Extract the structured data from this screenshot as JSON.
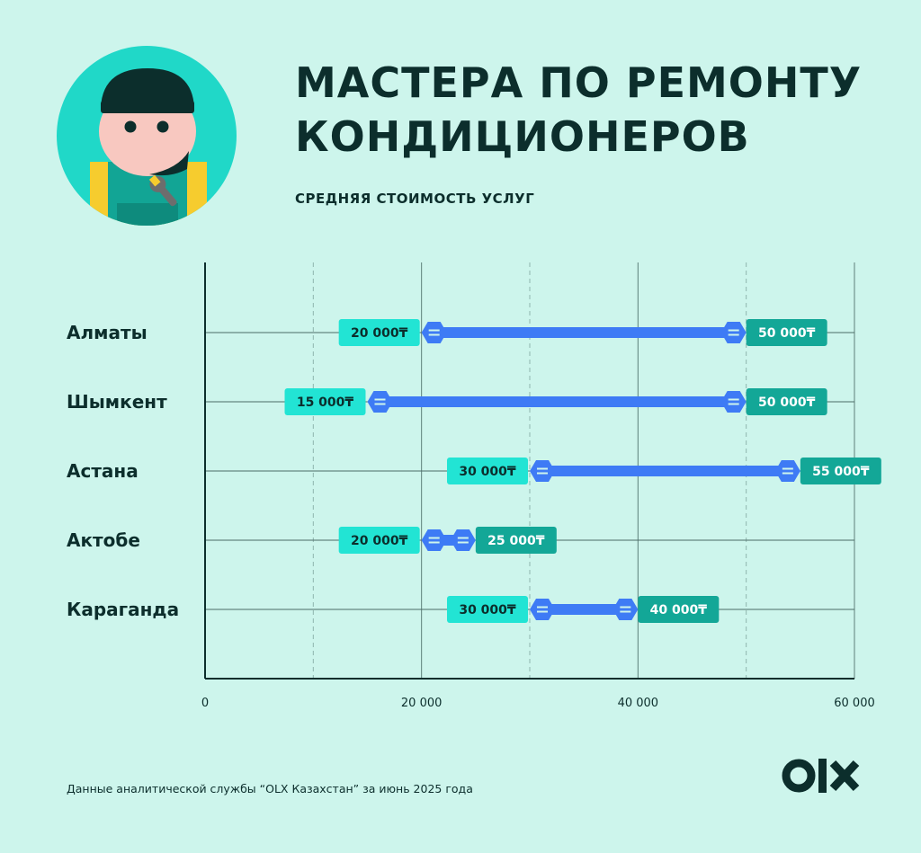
{
  "header": {
    "title": "МАСТЕРА ПО РЕМОНТУ КОНДИЦИОНЕРОВ",
    "subtitle": "СРЕДНЯЯ СТОИМОСТЬ УСЛУГ"
  },
  "footer": {
    "source": "Данные аналитической службы “OLX Казахстан” за июнь 2025 года",
    "logo_text": "OLX"
  },
  "colors": {
    "background": "#CDF5EC",
    "text": "#0C2E2C",
    "range_bar": "#3E7BF5",
    "min_label": "#22E4D4",
    "max_label": "#13A797",
    "avatar_circle": "#20D8C8"
  },
  "chart_data": {
    "type": "range-bar",
    "title": "МАСТЕРА ПО РЕМОНТУ КОНДИЦИОНЕРОВ",
    "subtitle": "СРЕДНЯЯ СТОИМОСТЬ УСЛУГ",
    "xlim": [
      0,
      60000
    ],
    "x_ticks": [
      0,
      20000,
      40000,
      60000
    ],
    "x_tick_labels": [
      "0",
      "20 000",
      "40 000",
      "60 000"
    ],
    "minor_gridlines": [
      10000,
      30000,
      50000
    ],
    "currency": "₸",
    "categories": [
      "Алматы",
      "Шымкент",
      "Астана",
      "Актобе",
      "Караганда"
    ],
    "series": [
      {
        "values": [
          20000,
          15000,
          30000,
          20000,
          30000
        ]
      },
      {
        "values": [
          50000,
          50000,
          55000,
          25000,
          40000
        ]
      }
    ],
    "min_labels": [
      "20 000₸",
      "15 000₸",
      "30 000₸",
      "20 000₸",
      "30 000₸"
    ],
    "max_labels": [
      "50 000₸",
      "50 000₸",
      "55 000₸",
      "25 000₸",
      "40 000₸"
    ],
    "grid": true
  }
}
